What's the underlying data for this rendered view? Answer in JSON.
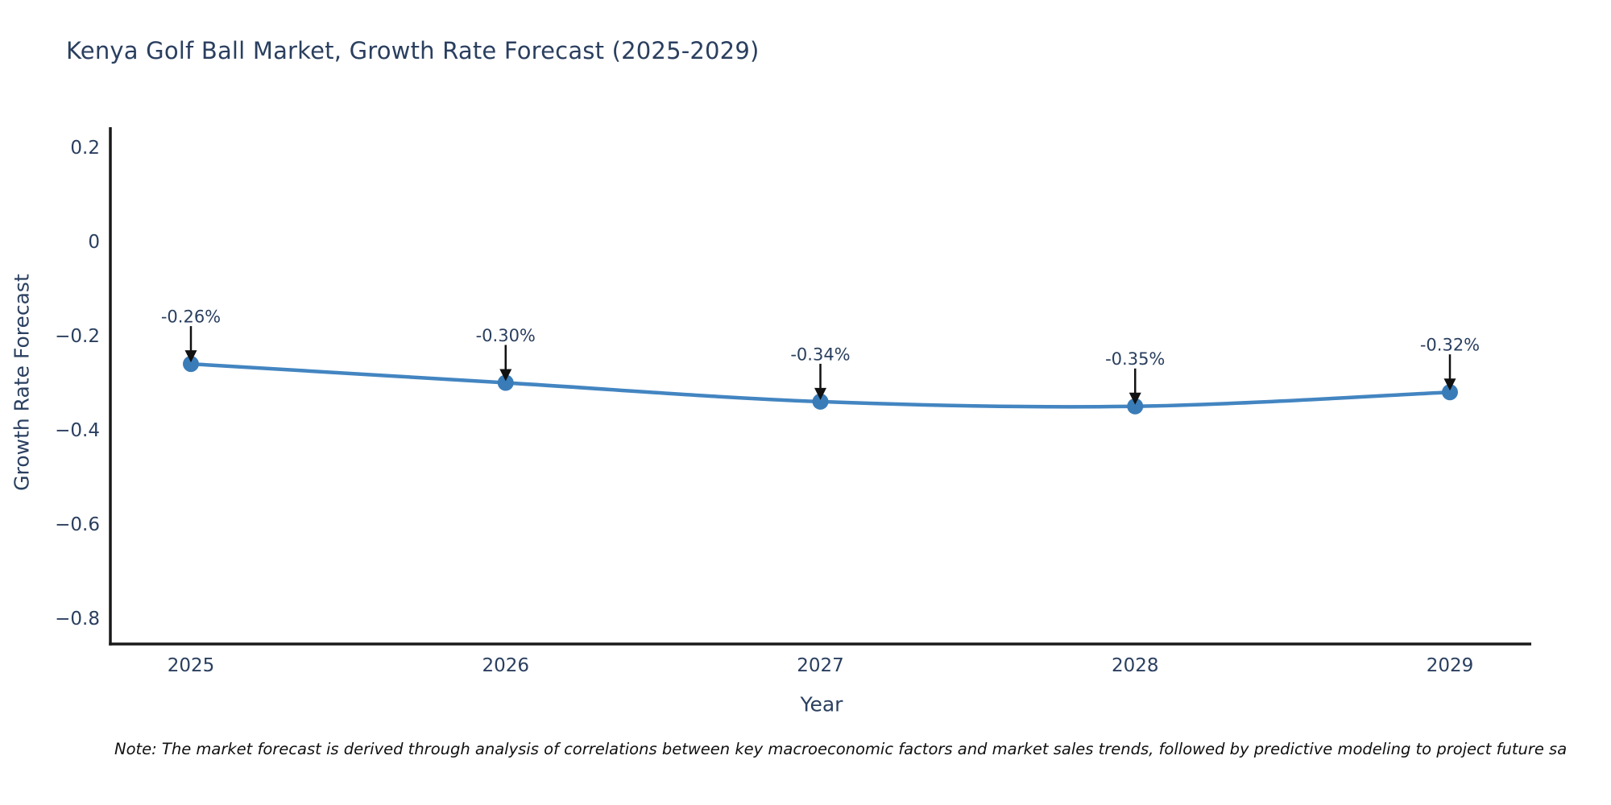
{
  "title": "Kenya Golf Ball Market, Growth Rate Forecast (2025-2029)",
  "note": "Note: The market forecast is derived through analysis of correlations between key macroeconomic factors and market sales trends, followed by predictive modeling to project future sa",
  "chart_data": {
    "type": "line",
    "title": "Kenya Golf Ball Market, Growth Rate Forecast (2025-2029)",
    "xlabel": "Year",
    "ylabel": "Growth Rate Forecast",
    "x": [
      2025,
      2026,
      2027,
      2028,
      2029
    ],
    "series": [
      {
        "name": "Growth Rate Forecast",
        "values": [
          -0.26,
          -0.3,
          -0.34,
          -0.35,
          -0.32
        ]
      }
    ],
    "point_labels": [
      "-0.26%",
      "-0.30%",
      "-0.34%",
      "-0.35%",
      "-0.32%"
    ],
    "y_ticks": [
      0.2,
      0,
      -0.2,
      -0.4,
      -0.6,
      -0.8
    ],
    "ylim": [
      -0.855,
      0.24
    ],
    "xlim": [
      2024.74,
      2029.26
    ],
    "grid": false,
    "legend": false,
    "line_shape": "spline",
    "colors": {
      "line": "#4385c1",
      "marker": "#3a7cb8",
      "axis": "#1a1a1a",
      "text": "#2a3f5f",
      "arrow": "#111111"
    }
  }
}
